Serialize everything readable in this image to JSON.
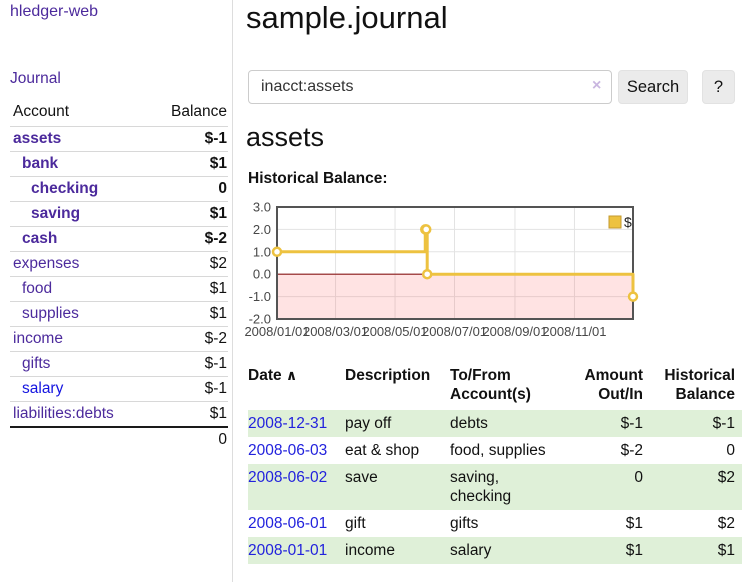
{
  "app": {
    "brand": "hledger-web"
  },
  "sidebar": {
    "journal_link": "Journal",
    "account_header": "Account",
    "balance_header": "Balance",
    "accounts": [
      {
        "name": "assets",
        "depth": 0,
        "bold": true,
        "balance": "$-1",
        "balance_tone": "negative-strong"
      },
      {
        "name": "bank",
        "depth": 1,
        "bold": true,
        "balance": "$1",
        "balance_tone": "normal"
      },
      {
        "name": "checking",
        "depth": 2,
        "bold": true,
        "balance": "0",
        "balance_tone": "normal"
      },
      {
        "name": "saving",
        "depth": 2,
        "bold": true,
        "balance": "$1",
        "balance_tone": "normal"
      },
      {
        "name": "cash",
        "depth": 1,
        "bold": true,
        "balance": "$-2",
        "balance_tone": "negative-strong"
      },
      {
        "name": "expenses",
        "depth": 0,
        "bold": false,
        "balance": "$2",
        "balance_tone": "normal"
      },
      {
        "name": "food",
        "depth": 1,
        "bold": false,
        "balance": "$1",
        "balance_tone": "normal"
      },
      {
        "name": "supplies",
        "depth": 1,
        "bold": false,
        "balance": "$1",
        "balance_tone": "normal"
      },
      {
        "name": "income",
        "depth": 0,
        "bold": false,
        "balance": "$-2",
        "balance_tone": "negative-light"
      },
      {
        "name": "gifts",
        "depth": 1,
        "bold": false,
        "balance": "$-1",
        "balance_tone": "negative-light"
      },
      {
        "name": "salary",
        "depth": 1,
        "bold": false,
        "balance": "$-1",
        "balance_tone": "negative-light",
        "link_color": "blue"
      },
      {
        "name": "liabilities:debts",
        "depth": 0,
        "bold": false,
        "balance": "$1",
        "balance_tone": "normal"
      }
    ],
    "total": "0"
  },
  "header": {
    "title": "sample.journal"
  },
  "search": {
    "value": "inacct:assets",
    "clear_icon": "×",
    "search_button": "Search",
    "help_button": "?"
  },
  "account_page": {
    "title": "assets",
    "chart_label": "Historical Balance:"
  },
  "chart_data": {
    "type": "line",
    "step": true,
    "title": "Historical Balance:",
    "ylim": [
      -2,
      3
    ],
    "xlim_days": [
      0,
      365
    ],
    "y_ticks": [
      {
        "label": "3.0",
        "value": 3
      },
      {
        "label": "2.0",
        "value": 2
      },
      {
        "label": "1.0",
        "value": 1
      },
      {
        "label": "0.0",
        "value": 0
      },
      {
        "label": "-1.0",
        "value": -1
      },
      {
        "label": "-2.0",
        "value": -2
      }
    ],
    "x_ticks": [
      {
        "label": "2008/01/01",
        "day": 0
      },
      {
        "label": "2008/03/01",
        "day": 60
      },
      {
        "label": "2008/05/01",
        "day": 121
      },
      {
        "label": "2008/07/01",
        "day": 182
      },
      {
        "label": "2008/09/01",
        "day": 244
      },
      {
        "label": "2008/11/01",
        "day": 305
      }
    ],
    "series": [
      {
        "name": "$",
        "color": "#edc240",
        "points": [
          {
            "date": "2008-01-01",
            "day": 0,
            "value": 1
          },
          {
            "date": "2008-06-01",
            "day": 152,
            "value": 2
          },
          {
            "date": "2008-06-02",
            "day": 153,
            "value": 2
          },
          {
            "date": "2008-06-03",
            "day": 154,
            "value": 0
          },
          {
            "date": "2008-12-31",
            "day": 365,
            "value": -1
          }
        ]
      }
    ],
    "negative_region_below": 0,
    "legend": {
      "label": "$",
      "position": "top-right"
    },
    "grid": true
  },
  "transactions": {
    "columns": [
      "Date",
      "Description",
      "To/From\nAccount(s)",
      "Amount\nOut/In",
      "Historical\nBalance"
    ],
    "sort_icon": "∧",
    "rows": [
      {
        "date": "2008-12-31",
        "description": "pay off",
        "accounts": "debts",
        "amount": "$-1",
        "balance": "$-1",
        "amount_negative": true,
        "balance_negative": true,
        "shaded": true
      },
      {
        "date": "2008-06-03",
        "description": "eat & shop",
        "accounts": "food, supplies",
        "amount": "$-2",
        "balance": "0",
        "amount_negative": true,
        "balance_negative": false,
        "shaded": false
      },
      {
        "date": "2008-06-02",
        "description": "save",
        "accounts": "saving,\nchecking",
        "amount": "0",
        "balance": "$2",
        "amount_negative": false,
        "balance_negative": false,
        "shaded": true
      },
      {
        "date": "2008-06-01",
        "description": "gift",
        "accounts": "gifts",
        "amount": "$1",
        "balance": "$2",
        "amount_negative": false,
        "balance_negative": false,
        "shaded": false
      },
      {
        "date": "2008-01-01",
        "description": "income",
        "accounts": "salary",
        "amount": "$1",
        "balance": "$1",
        "amount_negative": false,
        "balance_negative": false,
        "shaded": true
      }
    ]
  },
  "colors": {
    "accent_purple": "#4c2a9c",
    "link_blue": "#2222dd",
    "negative_strong": "#8b1212",
    "negative_light": "#a86a6a",
    "row_green": "#dff0d8",
    "chart_line": "#edc240",
    "chart_zero_line": "#8b1a1a",
    "chart_border": "#545454"
  }
}
